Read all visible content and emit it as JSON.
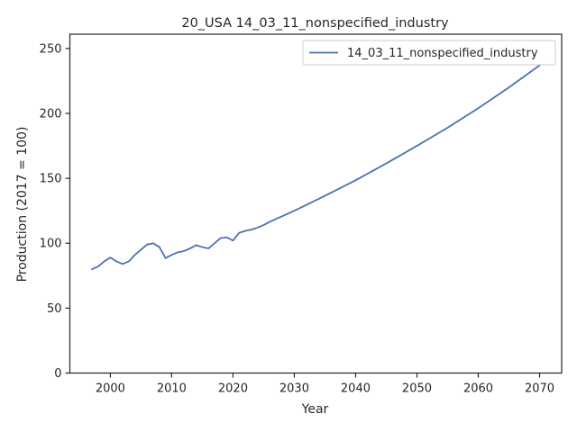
{
  "chart_data": {
    "type": "line",
    "title": "20_USA 14_03_11_nonspecified_industry",
    "xlabel": "Year",
    "ylabel": "Production (2017 = 100)",
    "xlim": [
      1993.4,
      2073.6
    ],
    "ylim": [
      0,
      261
    ],
    "xticks": [
      2000,
      2010,
      2020,
      2030,
      2040,
      2050,
      2060,
      2070
    ],
    "yticks": [
      0,
      50,
      100,
      150,
      200,
      250
    ],
    "grid": false,
    "legend_position": "upper right",
    "line_color": "#4c72b0",
    "series": [
      {
        "name": "14_03_11_nonspecified_industry",
        "x": [
          1997,
          1998,
          1999,
          2000,
          2001,
          2002,
          2003,
          2004,
          2005,
          2006,
          2007,
          2008,
          2009,
          2010,
          2011,
          2012,
          2013,
          2014,
          2015,
          2016,
          2017,
          2018,
          2019,
          2020,
          2021,
          2022,
          2023,
          2024,
          2025,
          2026,
          2030,
          2035,
          2040,
          2045,
          2050,
          2055,
          2060,
          2065,
          2070,
          2071
        ],
        "values": [
          80,
          82,
          86,
          89,
          86,
          84,
          86,
          91,
          95,
          99,
          100,
          97,
          88.5,
          91,
          93,
          94,
          96,
          98.5,
          97,
          96,
          100,
          104,
          104.5,
          102,
          108,
          109.5,
          110.5,
          112,
          114,
          116.5,
          125,
          136.5,
          148.5,
          161.5,
          175,
          189,
          204,
          220,
          237,
          241
        ]
      }
    ]
  }
}
